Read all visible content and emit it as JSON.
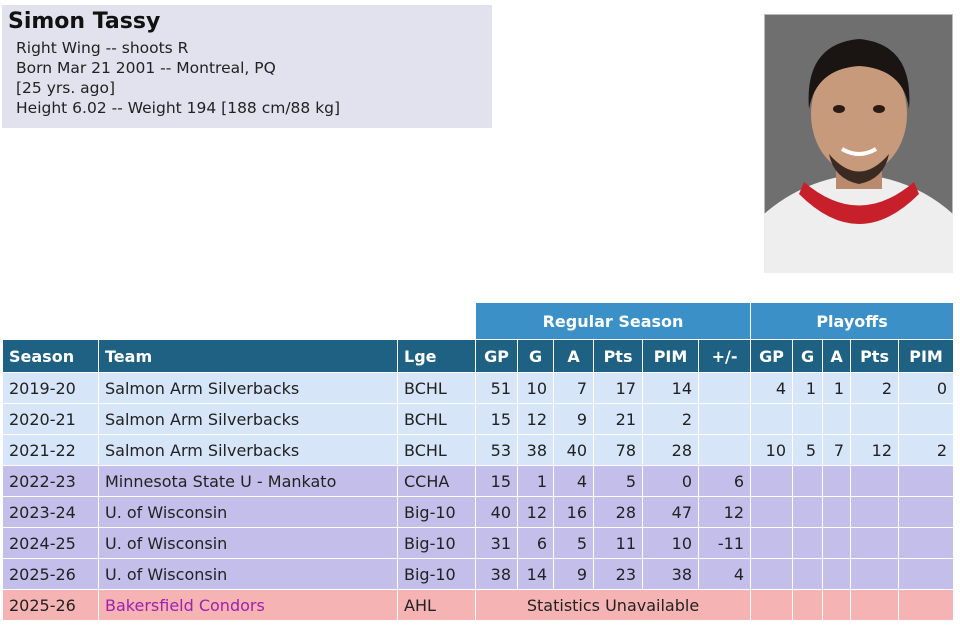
{
  "player": {
    "name": "Simon Tassy",
    "lines": [
      "Right Wing -- shoots R",
      "Born Mar 21 2001 -- Montreal, PQ",
      "[25 yrs. ago]",
      "Height 6.02 -- Weight 194 [188 cm/88 kg]"
    ]
  },
  "table": {
    "groups": [
      "Regular Season",
      "Playoffs"
    ],
    "columns": [
      "Season",
      "Team",
      "Lge",
      "GP",
      "G",
      "A",
      "Pts",
      "PIM",
      "+/-",
      "GP",
      "G",
      "A",
      "Pts",
      "PIM"
    ],
    "rows": [
      {
        "season": "2019-20",
        "team": "Salmon Arm Silverbacks",
        "lge": "BCHL",
        "stats": [
          51,
          10,
          7,
          17,
          14,
          null,
          4,
          1,
          1,
          2,
          0
        ]
      },
      {
        "season": "2020-21",
        "team": "Salmon Arm Silverbacks",
        "lge": "BCHL",
        "stats": [
          15,
          12,
          9,
          21,
          2,
          null,
          null,
          null,
          null,
          null,
          null
        ]
      },
      {
        "season": "2021-22",
        "team": "Salmon Arm Silverbacks",
        "lge": "BCHL",
        "stats": [
          53,
          38,
          40,
          78,
          28,
          null,
          10,
          5,
          7,
          12,
          2
        ]
      },
      {
        "season": "2022-23",
        "team": "Minnesota State U - Mankato",
        "lge": "CCHA",
        "stats": [
          15,
          1,
          4,
          5,
          0,
          6,
          null,
          null,
          null,
          null,
          null
        ]
      },
      {
        "season": "2023-24",
        "team": "U. of Wisconsin",
        "lge": "Big-10",
        "stats": [
          40,
          12,
          16,
          28,
          47,
          12,
          null,
          null,
          null,
          null,
          null
        ]
      },
      {
        "season": "2024-25",
        "team": "U. of Wisconsin",
        "lge": "Big-10",
        "stats": [
          31,
          6,
          5,
          11,
          10,
          -11,
          null,
          null,
          null,
          null,
          null
        ]
      },
      {
        "season": "2025-26",
        "team": "U. of Wisconsin",
        "lge": "Big-10",
        "stats": [
          38,
          14,
          9,
          23,
          38,
          4,
          null,
          null,
          null,
          null,
          null
        ]
      },
      {
        "season": "2025-26",
        "team": "Bakersfield Condors",
        "lge": "AHL",
        "note": "Statistics Unavailable"
      }
    ]
  }
}
